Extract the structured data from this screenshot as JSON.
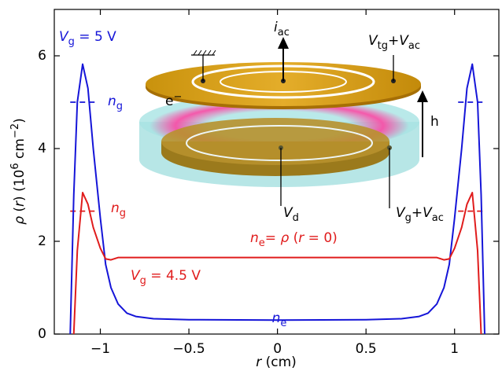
{
  "chart_data": {
    "type": "line",
    "xlabel": [
      {
        "t": "r",
        "i": true
      },
      {
        "t": " (cm)"
      }
    ],
    "ylabel": [
      {
        "t": "ρ",
        "i": true
      },
      {
        "t": " ("
      },
      {
        "t": "r",
        "i": true
      },
      {
        "t": ") (10"
      },
      {
        "t": "6",
        "sup": true
      },
      {
        "t": " cm"
      },
      {
        "t": "−2",
        "sup": true
      },
      {
        "t": ")"
      }
    ],
    "xlim": [
      -1.26,
      1.25
    ],
    "ylim": [
      0,
      7
    ],
    "xticks": [
      {
        "value": -1,
        "label": "−1"
      },
      {
        "value": -0.5,
        "label": "−0.5"
      },
      0,
      0.5,
      1
    ],
    "yticks": [
      0,
      2,
      4,
      6
    ],
    "x": [
      -1.17,
      -1.16,
      -1.15,
      -1.13,
      -1.1,
      -1.07,
      -1.04,
      -1.0,
      -0.97,
      -0.94,
      -0.9,
      -0.85,
      -0.8,
      -0.7,
      -0.5,
      0,
      0.5,
      0.7,
      0.8,
      0.85,
      0.9,
      0.94,
      0.97,
      1.0,
      1.04,
      1.07,
      1.1,
      1.13,
      1.15,
      1.16,
      1.17
    ],
    "series": [
      {
        "color": "#1515d8",
        "values": [
          0,
          1.5,
          3.0,
          5.0,
          5.82,
          5.3,
          4.0,
          2.5,
          1.5,
          1.0,
          0.65,
          0.45,
          0.38,
          0.33,
          0.31,
          0.3,
          0.31,
          0.33,
          0.38,
          0.45,
          0.65,
          1.0,
          1.5,
          2.5,
          4.0,
          5.3,
          5.82,
          5.0,
          3.0,
          1.5,
          0
        ]
      },
      {
        "color": "#e01c1c",
        "values": [
          null,
          null,
          0,
          1.8,
          3.05,
          2.8,
          2.3,
          1.85,
          1.62,
          1.6,
          1.65,
          1.65,
          1.65,
          1.65,
          1.65,
          1.65,
          1.65,
          1.65,
          1.65,
          1.65,
          1.65,
          1.6,
          1.62,
          1.85,
          2.3,
          2.8,
          3.05,
          1.8,
          0,
          null,
          null
        ]
      }
    ],
    "reference_lines": [
      {
        "color": "#1515d8",
        "y": 5.0,
        "xranges": [
          [
            -1.17,
            -1.02
          ],
          [
            1.02,
            1.17
          ]
        ]
      },
      {
        "color": "#e01c1c",
        "y": 2.65,
        "xranges": [
          [
            -1.17,
            -1.02
          ],
          [
            1.02,
            1.17
          ]
        ]
      }
    ],
    "annotations": [
      {
        "color": "#1515d8",
        "parts": [
          {
            "t": "V",
            "i": true
          },
          {
            "t": "g",
            "sub": true
          },
          {
            "t": " = 5 V"
          }
        ]
      },
      {
        "color": "#1515d8",
        "parts": [
          {
            "t": "n",
            "i": true
          },
          {
            "t": "g",
            "sub": true
          }
        ]
      },
      {
        "color": "#e01c1c",
        "parts": [
          {
            "t": "n",
            "i": true
          },
          {
            "t": "g",
            "sub": true
          }
        ]
      },
      {
        "color": "#e01c1c",
        "parts": [
          {
            "t": "n",
            "i": true
          },
          {
            "t": "e",
            "sub": true
          },
          {
            "t": "= "
          },
          {
            "t": "ρ",
            "i": true
          },
          {
            "t": " ("
          },
          {
            "t": "r",
            "i": true
          },
          {
            "t": " = 0)"
          }
        ]
      },
      {
        "color": "#e01c1c",
        "parts": [
          {
            "t": "V",
            "i": true
          },
          {
            "t": "g",
            "sub": true
          },
          {
            "t": " = 4.5 V"
          }
        ]
      },
      {
        "color": "#1515d8",
        "parts": [
          {
            "t": "n",
            "i": true
          },
          {
            "t": "e",
            "sub": true
          }
        ]
      },
      {
        "color": "#000000",
        "parts": [
          {
            "t": "i",
            "i": true
          },
          {
            "t": "ac",
            "sub": true
          }
        ]
      },
      {
        "color": "#000000",
        "parts": [
          {
            "t": "V",
            "i": true
          },
          {
            "t": "tg",
            "sub": true
          },
          {
            "t": "+"
          },
          {
            "t": "V",
            "i": true
          },
          {
            "t": "ac",
            "sub": true
          }
        ]
      },
      {
        "color": "#000000",
        "parts": [
          {
            "t": "e"
          },
          {
            "t": "−",
            "sup": true
          }
        ]
      },
      {
        "color": "#000000",
        "parts": [
          {
            "t": "h"
          }
        ]
      },
      {
        "color": "#000000",
        "parts": [
          {
            "t": "V",
            "i": true
          },
          {
            "t": "d",
            "sub": true
          }
        ]
      },
      {
        "color": "#000000",
        "parts": [
          {
            "t": "V",
            "i": true
          },
          {
            "t": "g",
            "sub": true
          },
          {
            "t": "+"
          },
          {
            "t": "V",
            "i": true
          },
          {
            "t": "ac",
            "sub": true
          }
        ]
      }
    ]
  }
}
